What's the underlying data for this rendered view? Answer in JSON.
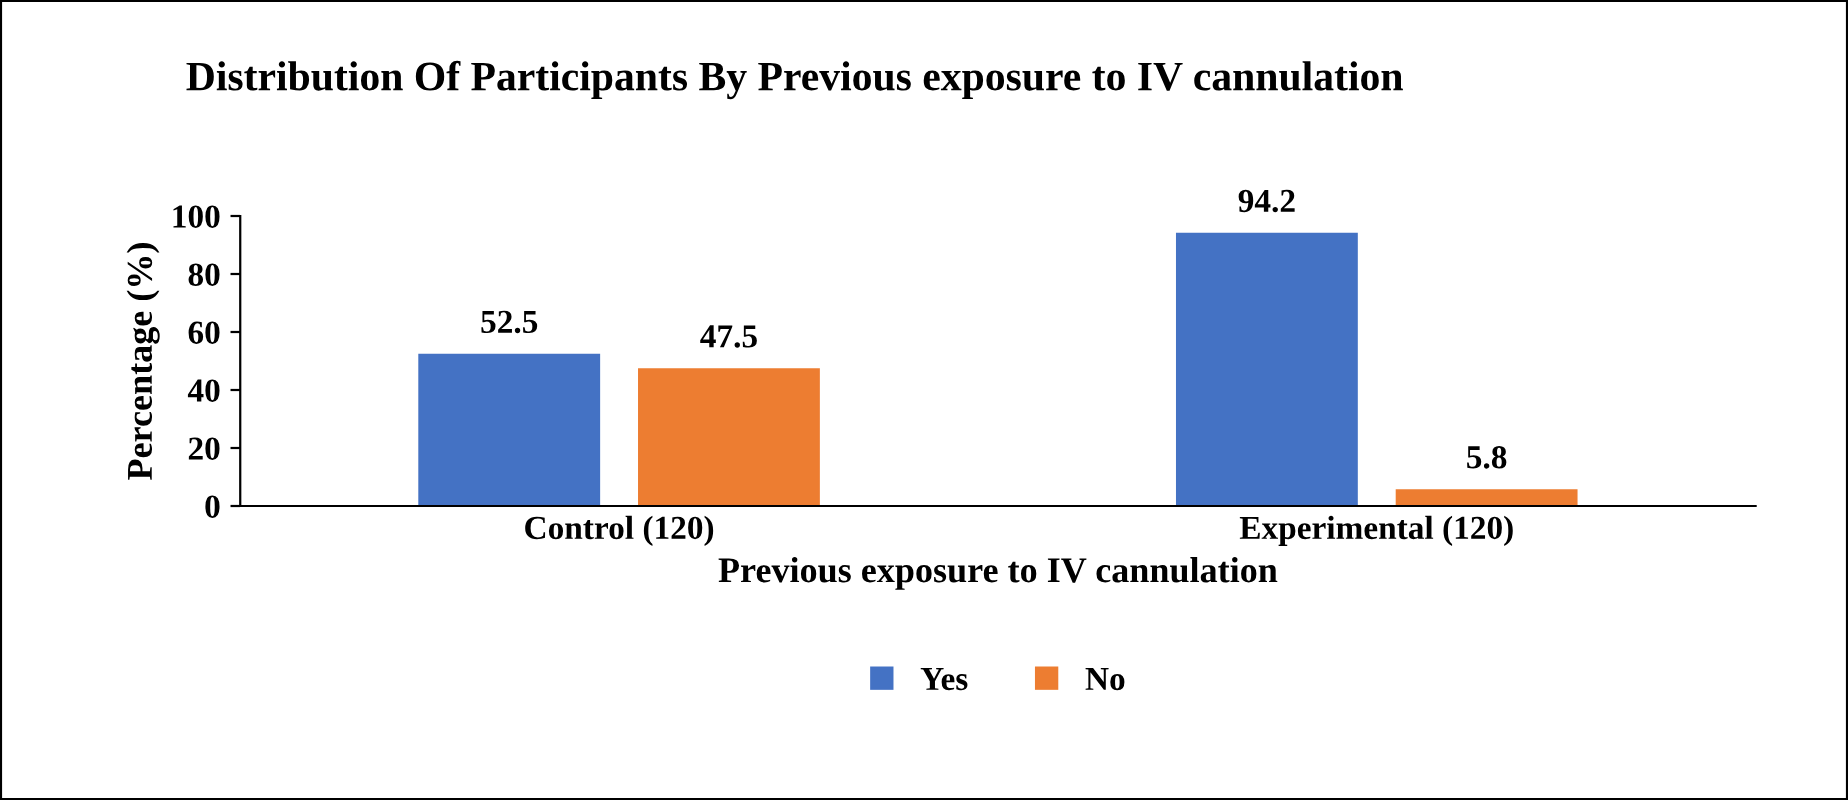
{
  "chart_data": {
    "type": "bar",
    "title": "Distribution Of Participants By Previous exposure to IV cannulation",
    "xlabel": "Previous exposure to IV cannulation",
    "ylabel": "Percentage (%)",
    "categories": [
      "Control (120)",
      "Experimental (120)"
    ],
    "series": [
      {
        "name": "Yes",
        "color": "#4472c4",
        "values": [
          52.5,
          94.2
        ]
      },
      {
        "name": "No",
        "color": "#ed7d31",
        "values": [
          47.5,
          5.8
        ]
      }
    ],
    "ylim": [
      0,
      100
    ],
    "yticks": [
      0,
      20,
      40,
      60,
      80,
      100
    ],
    "data_labels": true,
    "legend": "bottom",
    "grid": false
  }
}
